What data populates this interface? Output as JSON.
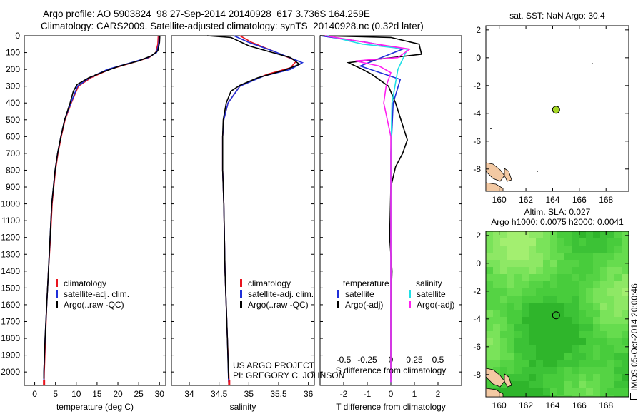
{
  "header": {
    "title_line1": "Argo profile: AO 5903824_98 27-Sep-2014 20140928_617 3.736S 164.259E",
    "title_line2": "Climatology: CARS2009. Satellite-adjusted climatology: synTS_20140928.nc (0.32d later)"
  },
  "colors": {
    "climatology": "#e8141e",
    "satellite": "#1f2fd8",
    "argo": "#000000",
    "sat_temp": "#1fe0e6",
    "argo_sal": "#ff20f0",
    "map_land": "#f3c9a3",
    "map_sea": "#33bf33"
  },
  "footer": {
    "project_line1": "US ARGO PROJECT",
    "project_line2": "PI: GREGORY C. JOHNSON"
  },
  "side_label": "IMOS 05-Oct-2014 20:00:46",
  "chart_data": [
    {
      "type": "line",
      "name": "temperature",
      "xlabel": "temperature (deg C)",
      "ylabel": "",
      "xlim": [
        -2.5,
        31.5
      ],
      "ylim": [
        0,
        2080
      ],
      "xticks": [
        0,
        5,
        10,
        15,
        20,
        25,
        30
      ],
      "yticks": [
        0,
        100,
        200,
        300,
        400,
        500,
        600,
        700,
        800,
        900,
        1000,
        1100,
        1200,
        1300,
        1400,
        1500,
        1600,
        1700,
        1800,
        1900,
        2000
      ],
      "legend": [
        "climatology",
        "satellite-adj. clim.",
        "Argo(..raw -QC)"
      ],
      "series": [
        {
          "name": "climatology",
          "color_key": "climatology",
          "points": [
            [
              29.7,
              0
            ],
            [
              29.6,
              50
            ],
            [
              29.1,
              100
            ],
            [
              27.5,
              130
            ],
            [
              23.5,
              160
            ],
            [
              18,
              200
            ],
            [
              13.5,
              250
            ],
            [
              10.5,
              300
            ],
            [
              8.8,
              400
            ],
            [
              7.3,
              500
            ],
            [
              6.4,
              600
            ],
            [
              5.6,
              700
            ],
            [
              5,
              800
            ],
            [
              4.6,
              900
            ],
            [
              4.2,
              1000
            ],
            [
              3.8,
              1200
            ],
            [
              3.3,
              1400
            ],
            [
              2.9,
              1600
            ],
            [
              2.6,
              1800
            ],
            [
              2.3,
              2000
            ],
            [
              2.25,
              2060
            ]
          ]
        },
        {
          "name": "satellite-adj. clim.",
          "color_key": "satellite",
          "points": [
            [
              29.9,
              0
            ],
            [
              29.8,
              50
            ],
            [
              29.3,
              100
            ],
            [
              27.3,
              130
            ],
            [
              23.2,
              160
            ],
            [
              17.5,
              200
            ],
            [
              13.2,
              250
            ],
            [
              10.3,
              300
            ],
            [
              8.7,
              400
            ],
            [
              7.2,
              500
            ],
            [
              6.3,
              600
            ],
            [
              5.5,
              700
            ],
            [
              4.9,
              800
            ],
            [
              4.5,
              900
            ],
            [
              4.1,
              1000
            ],
            [
              3.7,
              1200
            ],
            [
              3.3,
              1400
            ],
            [
              2.9,
              1600
            ],
            [
              2.5,
              1800
            ],
            [
              2.2,
              2000
            ],
            [
              2.2,
              2060
            ]
          ]
        },
        {
          "name": "Argo(..raw -QC)",
          "color_key": "argo",
          "points": [
            [
              30.1,
              0
            ],
            [
              30,
              40
            ],
            [
              29.6,
              90
            ],
            [
              28,
              120
            ],
            [
              25,
              150
            ],
            [
              20.5,
              180
            ],
            [
              16.5,
              215
            ],
            [
              13,
              250
            ],
            [
              10.2,
              290
            ],
            [
              9.3,
              330
            ],
            [
              8.5,
              400
            ],
            [
              7.2,
              500
            ],
            [
              6.3,
              600
            ],
            [
              5.5,
              700
            ],
            [
              4.9,
              800
            ],
            [
              4.5,
              900
            ],
            [
              4.1,
              1000
            ],
            [
              3.7,
              1200
            ],
            [
              3.3,
              1400
            ],
            [
              2.9,
              1600
            ],
            [
              2.5,
              1800
            ],
            [
              2.2,
              2000
            ],
            [
              2.2,
              2040
            ]
          ]
        }
      ]
    },
    {
      "type": "line",
      "name": "salinity",
      "xlabel": "salinity",
      "ylabel": "",
      "xlim": [
        33.7,
        36.1
      ],
      "ylim": [
        0,
        2080
      ],
      "xticks": [
        34,
        34.5,
        35,
        35.5,
        36
      ],
      "legend": [
        "climatology",
        "satellite-adj. clim.",
        "Argo(..raw -QC)"
      ],
      "series": [
        {
          "name": "climatology",
          "color_key": "climatology",
          "points": [
            [
              34.85,
              0
            ],
            [
              35.05,
              40
            ],
            [
              35.4,
              90
            ],
            [
              35.8,
              150
            ],
            [
              35.7,
              190
            ],
            [
              35.3,
              230
            ],
            [
              34.85,
              300
            ],
            [
              34.65,
              400
            ],
            [
              34.58,
              500
            ],
            [
              34.56,
              600
            ],
            [
              34.56,
              800
            ],
            [
              34.58,
              1000
            ],
            [
              34.6,
              1400
            ],
            [
              34.64,
              1800
            ],
            [
              34.67,
              2060
            ]
          ]
        },
        {
          "name": "satellite-adj. clim.",
          "color_key": "satellite",
          "points": [
            [
              34.75,
              0
            ],
            [
              35.0,
              40
            ],
            [
              35.4,
              90
            ],
            [
              35.9,
              160
            ],
            [
              35.7,
              200
            ],
            [
              35.25,
              240
            ],
            [
              34.85,
              300
            ],
            [
              34.65,
              400
            ],
            [
              34.58,
              500
            ],
            [
              34.56,
              600
            ],
            [
              34.56,
              800
            ],
            [
              34.58,
              1000
            ],
            [
              34.6,
              1400
            ],
            [
              34.64,
              1800
            ],
            [
              34.66,
              2060
            ]
          ]
        },
        {
          "name": "Argo(..raw -QC)",
          "color_key": "argo",
          "points": [
            [
              34.3,
              0
            ],
            [
              34.7,
              10
            ],
            [
              35.0,
              60
            ],
            [
              35.4,
              100
            ],
            [
              35.7,
              130
            ],
            [
              35.85,
              170
            ],
            [
              35.6,
              205
            ],
            [
              35.15,
              250
            ],
            [
              34.85,
              295
            ],
            [
              34.7,
              330
            ],
            [
              34.62,
              400
            ],
            [
              34.57,
              500
            ],
            [
              34.56,
              600
            ],
            [
              34.56,
              800
            ],
            [
              34.58,
              1000
            ],
            [
              34.6,
              1400
            ],
            [
              34.64,
              1800
            ],
            [
              34.66,
              2040
            ]
          ]
        }
      ]
    },
    {
      "type": "line",
      "name": "differences",
      "xlabel": "T difference from climatology",
      "xlabel_top": "S difference from climatology",
      "xlim": [
        -3,
        3
      ],
      "ylim": [
        0,
        2080
      ],
      "xticks": [
        -2,
        -1,
        0,
        1,
        2
      ],
      "xticks_top": [
        "-0.5",
        "-0.25",
        "0",
        "0.25",
        "0.5"
      ],
      "legend_temperature_header": "temperature",
      "legend_salinity_header": "salinity",
      "legend": [
        "satellite",
        "Argo(-adj)",
        "satellite",
        "Argo(-adj)"
      ],
      "series": [
        {
          "name": "temperature satellite",
          "color_key": "satellite",
          "points": [
            [
              -3,
              0
            ],
            [
              -1,
              40
            ],
            [
              0.5,
              80
            ],
            [
              -1.3,
              180
            ],
            [
              0.4,
              260
            ],
            [
              0.1,
              400
            ],
            [
              0,
              700
            ],
            [
              0,
              2060
            ]
          ]
        },
        {
          "name": "temperature Argo(-adj)",
          "color_key": "argo",
          "points": [
            [
              -3,
              0
            ],
            [
              0,
              10
            ],
            [
              1.2,
              50
            ],
            [
              1.3,
              110
            ],
            [
              -1.8,
              160
            ],
            [
              -1.2,
              200
            ],
            [
              -0.8,
              230
            ],
            [
              -0.5,
              260
            ],
            [
              -0.1,
              300
            ],
            [
              0.2,
              400
            ],
            [
              0.7,
              620
            ],
            [
              0.5,
              700
            ],
            [
              0.2,
              780
            ],
            [
              0,
              900
            ],
            [
              -0.05,
              1200
            ],
            [
              0.05,
              1400
            ],
            [
              0,
              1600
            ],
            [
              0,
              2040
            ]
          ]
        },
        {
          "name": "salinity satellite",
          "color_key": "sat_temp",
          "points": [
            [
              -2.7,
              0
            ],
            [
              -1.2,
              50
            ],
            [
              0.7,
              80
            ],
            [
              0.3,
              200
            ],
            [
              0.05,
              400
            ],
            [
              0,
              700
            ],
            [
              0,
              2060
            ]
          ]
        },
        {
          "name": "salinity Argo(-adj)",
          "color_key": "argo_sal",
          "points": [
            [
              -2.8,
              0
            ],
            [
              -0.6,
              50
            ],
            [
              0.8,
              80
            ],
            [
              0.3,
              130
            ],
            [
              -1.5,
              150
            ],
            [
              -0.5,
              180
            ],
            [
              0,
              220
            ],
            [
              -0.2,
              300
            ],
            [
              -0.3,
              400
            ],
            [
              0,
              600
            ],
            [
              0,
              2060
            ]
          ]
        }
      ]
    },
    {
      "type": "scatter",
      "name": "sst_map",
      "title": "sat. SST: NaN Argo: 30.4",
      "xlim": [
        159,
        169.7
      ],
      "ylim": [
        -9.6,
        2.3
      ],
      "xticks": [
        160,
        162,
        164,
        166,
        168
      ],
      "yticks": [
        2,
        0,
        -2,
        -4,
        -6,
        -8
      ],
      "points": [
        {
          "x": 164.26,
          "y": -3.74,
          "color": "#a6d825"
        }
      ]
    },
    {
      "type": "heatmap",
      "name": "sla_map",
      "title_line1": "Altim. SLA: 0.027",
      "title_line2": "Argo h1000: 0.0075 h2000: 0.0041",
      "xlim": [
        159,
        169.7
      ],
      "ylim": [
        -9.6,
        2.3
      ],
      "xticks": [
        160,
        162,
        164,
        166,
        168
      ],
      "yticks": [
        2,
        0,
        -2,
        -4,
        -6,
        -8
      ],
      "points": [
        {
          "x": 164.26,
          "y": -3.74
        }
      ]
    }
  ]
}
